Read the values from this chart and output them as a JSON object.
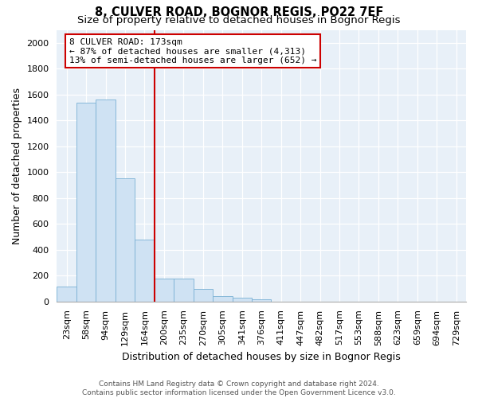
{
  "title_line1": "8, CULVER ROAD, BOGNOR REGIS, PO22 7EF",
  "title_line2": "Size of property relative to detached houses in Bognor Regis",
  "xlabel": "Distribution of detached houses by size in Bognor Regis",
  "ylabel": "Number of detached properties",
  "footnote": "Contains HM Land Registry data © Crown copyright and database right 2024.\nContains public sector information licensed under the Open Government Licence v3.0.",
  "categories": [
    "23sqm",
    "58sqm",
    "94sqm",
    "129sqm",
    "164sqm",
    "200sqm",
    "235sqm",
    "270sqm",
    "305sqm",
    "341sqm",
    "376sqm",
    "411sqm",
    "447sqm",
    "482sqm",
    "517sqm",
    "553sqm",
    "588sqm",
    "623sqm",
    "659sqm",
    "694sqm",
    "729sqm"
  ],
  "values": [
    115,
    1540,
    1560,
    950,
    480,
    180,
    180,
    95,
    40,
    30,
    20,
    0,
    0,
    0,
    0,
    0,
    0,
    0,
    0,
    0,
    0
  ],
  "bar_color": "#cfe2f3",
  "bar_edge_color": "#7ab0d4",
  "vline_x_index": 4.5,
  "vline_color": "#cc0000",
  "annotation_text": "8 CULVER ROAD: 173sqm\n← 87% of detached houses are smaller (4,313)\n13% of semi-detached houses are larger (652) →",
  "annotation_box_color": "#ffffff",
  "annotation_box_edge_color": "#cc0000",
  "ylim": [
    0,
    2100
  ],
  "yticks": [
    0,
    200,
    400,
    600,
    800,
    1000,
    1200,
    1400,
    1600,
    1800,
    2000
  ],
  "bg_color": "#e8f0f8",
  "title_fontsize": 10.5,
  "subtitle_fontsize": 9.5,
  "axis_label_fontsize": 9,
  "tick_fontsize": 8,
  "annotation_fontsize": 8,
  "footnote_fontsize": 6.5
}
